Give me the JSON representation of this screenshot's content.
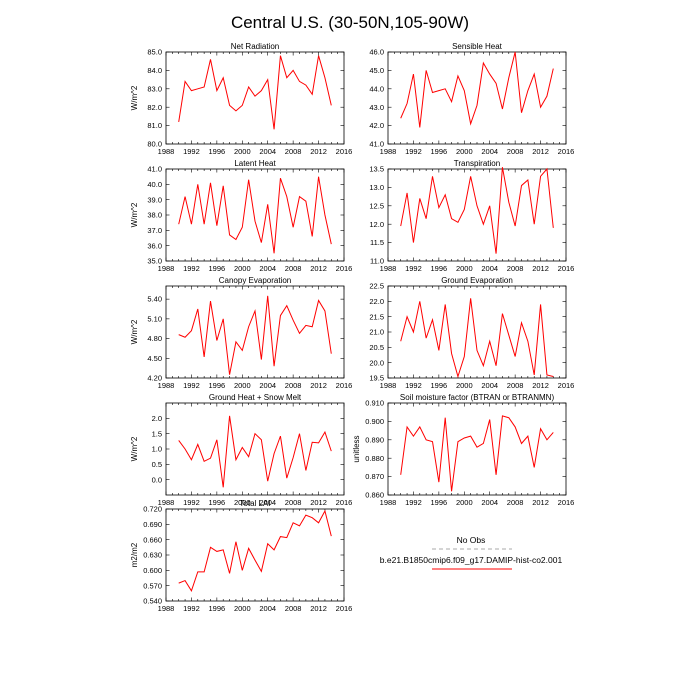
{
  "figure": {
    "title": "Central U.S. (30-50N,105-90W)"
  },
  "legend": {
    "entries": [
      {
        "label": "No Obs",
        "color": "#aaaaaa",
        "style": "dashed"
      },
      {
        "label": "b.e21.B1850cmip6.f09_g17.DAMIP-hist-co2.001",
        "color": "#ff0000",
        "style": "solid"
      }
    ]
  },
  "chart_data": [
    {
      "type": "line",
      "title": "Net Radiation",
      "ylabel": "W/m^2",
      "xlim": [
        1988,
        2016
      ],
      "xticks": [
        "1988",
        "1992",
        "1996",
        "2000",
        "2004",
        "2008",
        "2012",
        "2016"
      ],
      "ylim": [
        80.0,
        85.0
      ],
      "yticks": [
        "80.0",
        "81.0",
        "82.0",
        "83.0",
        "84.0",
        "85.0"
      ],
      "series": [
        {
          "color": "#ff0000",
          "x": [
            1990,
            1991,
            1992,
            1993,
            1994,
            1995,
            1996,
            1997,
            1998,
            1999,
            2000,
            2001,
            2002,
            2003,
            2004,
            2005,
            2006,
            2007,
            2008,
            2009,
            2010,
            2011,
            2012,
            2013,
            2014
          ],
          "values": [
            81.2,
            83.4,
            82.9,
            83.0,
            83.1,
            84.6,
            82.9,
            83.6,
            82.1,
            81.8,
            82.1,
            83.1,
            82.6,
            82.9,
            83.5,
            80.8,
            84.8,
            83.6,
            84.0,
            83.4,
            83.2,
            82.7,
            84.8,
            83.6,
            82.1
          ]
        }
      ]
    },
    {
      "type": "line",
      "title": "Sensible Heat",
      "ylabel": "",
      "xlim": [
        1988,
        2016
      ],
      "xticks": [
        "1988",
        "1992",
        "1996",
        "2000",
        "2004",
        "2008",
        "2012",
        "2016"
      ],
      "ylim": [
        41.0,
        46.0
      ],
      "yticks": [
        "41.0",
        "42.0",
        "43.0",
        "44.0",
        "45.0",
        "46.0"
      ],
      "series": [
        {
          "color": "#ff0000",
          "x": [
            1990,
            1991,
            1992,
            1993,
            1994,
            1995,
            1996,
            1997,
            1998,
            1999,
            2000,
            2001,
            2002,
            2003,
            2004,
            2005,
            2006,
            2007,
            2008,
            2009,
            2010,
            2011,
            2012,
            2013,
            2014
          ],
          "values": [
            42.4,
            43.2,
            44.8,
            41.9,
            45.0,
            43.8,
            43.9,
            44.0,
            43.3,
            44.7,
            43.9,
            42.1,
            43.1,
            45.4,
            44.8,
            44.3,
            42.9,
            44.6,
            46.0,
            42.7,
            43.9,
            44.8,
            43.0,
            43.6,
            45.1
          ]
        }
      ]
    },
    {
      "type": "line",
      "title": "Latent Heat",
      "ylabel": "W/m^2",
      "xlim": [
        1988,
        2016
      ],
      "xticks": [
        "1988",
        "1992",
        "1996",
        "2000",
        "2004",
        "2008",
        "2012",
        "2016"
      ],
      "ylim": [
        35.0,
        41.0
      ],
      "yticks": [
        "35.0",
        "36.0",
        "37.0",
        "38.0",
        "39.0",
        "40.0",
        "41.0"
      ],
      "series": [
        {
          "color": "#ff0000",
          "x": [
            1990,
            1991,
            1992,
            1993,
            1994,
            1995,
            1996,
            1997,
            1998,
            1999,
            2000,
            2001,
            2002,
            2003,
            2004,
            2005,
            2006,
            2007,
            2008,
            2009,
            2010,
            2011,
            2012,
            2013,
            2014
          ],
          "values": [
            37.4,
            39.2,
            37.4,
            40.0,
            37.4,
            40.1,
            37.3,
            39.9,
            36.7,
            36.4,
            37.2,
            40.3,
            37.6,
            36.2,
            38.7,
            35.5,
            40.4,
            39.2,
            37.2,
            39.2,
            38.9,
            36.6,
            40.5,
            38.0,
            36.1
          ]
        }
      ]
    },
    {
      "type": "line",
      "title": "Transpiration",
      "ylabel": "",
      "xlim": [
        1988,
        2016
      ],
      "xticks": [
        "1988",
        "1992",
        "1996",
        "2000",
        "2004",
        "2008",
        "2012",
        "2016"
      ],
      "ylim": [
        11.0,
        13.5
      ],
      "yticks": [
        "11.0",
        "11.5",
        "12.0",
        "12.5",
        "13.0",
        "13.5"
      ],
      "series": [
        {
          "color": "#ff0000",
          "x": [
            1990,
            1991,
            1992,
            1993,
            1994,
            1995,
            1996,
            1997,
            1998,
            1999,
            2000,
            2001,
            2002,
            2003,
            2004,
            2005,
            2006,
            2007,
            2008,
            2009,
            2010,
            2011,
            2012,
            2013,
            2014
          ],
          "values": [
            11.95,
            12.85,
            11.5,
            12.7,
            12.15,
            13.3,
            12.45,
            12.8,
            12.15,
            12.05,
            12.4,
            13.3,
            12.5,
            12.0,
            12.5,
            11.2,
            13.55,
            12.6,
            11.95,
            13.05,
            13.2,
            12.0,
            13.3,
            13.5,
            11.9
          ]
        }
      ]
    },
    {
      "type": "line",
      "title": "Canopy Evaporation",
      "ylabel": "W/m^2",
      "xlim": [
        1988,
        2016
      ],
      "xticks": [
        "1988",
        "1992",
        "1996",
        "2000",
        "2004",
        "2008",
        "2012",
        "2016"
      ],
      "ylim": [
        4.2,
        5.6
      ],
      "yticks": [
        "4.20",
        "4.50",
        "4.80",
        "5.10",
        "5.40"
      ],
      "series": [
        {
          "color": "#ff0000",
          "x": [
            1990,
            1991,
            1992,
            1993,
            1994,
            1995,
            1996,
            1997,
            1998,
            1999,
            2000,
            2001,
            2002,
            2003,
            2004,
            2005,
            2006,
            2007,
            2008,
            2009,
            2010,
            2011,
            2012,
            2013,
            2014
          ],
          "values": [
            4.86,
            4.82,
            4.92,
            5.25,
            4.52,
            5.37,
            4.77,
            5.1,
            4.25,
            4.75,
            4.62,
            4.98,
            5.22,
            4.48,
            5.45,
            4.38,
            5.15,
            5.3,
            5.08,
            4.88,
            5.0,
            4.98,
            5.38,
            5.22,
            4.57
          ]
        }
      ]
    },
    {
      "type": "line",
      "title": "Ground Evaporation",
      "ylabel": "",
      "xlim": [
        1988,
        2016
      ],
      "xticks": [
        "1988",
        "1992",
        "1996",
        "2000",
        "2004",
        "2008",
        "2012",
        "2016"
      ],
      "ylim": [
        19.5,
        22.5
      ],
      "yticks": [
        "19.5",
        "20.0",
        "20.5",
        "21.0",
        "21.5",
        "22.0",
        "22.5"
      ],
      "series": [
        {
          "color": "#ff0000",
          "x": [
            1990,
            1991,
            1992,
            1993,
            1994,
            1995,
            1996,
            1997,
            1998,
            1999,
            2000,
            2001,
            2002,
            2003,
            2004,
            2005,
            2006,
            2007,
            2008,
            2009,
            2010,
            2011,
            2012,
            2013,
            2014
          ],
          "values": [
            20.7,
            21.5,
            21.0,
            22.0,
            20.8,
            21.4,
            20.4,
            21.9,
            20.3,
            19.55,
            20.2,
            22.1,
            20.4,
            19.9,
            20.7,
            19.9,
            21.6,
            20.9,
            20.2,
            21.3,
            20.7,
            19.6,
            21.9,
            19.6,
            19.55
          ]
        }
      ]
    },
    {
      "type": "line",
      "title": "Ground Heat + Snow Melt",
      "ylabel": "W/m^2",
      "xlim": [
        1988,
        2016
      ],
      "xticks": [
        "1988",
        "1992",
        "1996",
        "2000",
        "2004",
        "2008",
        "2012",
        "2016"
      ],
      "ylim": [
        -0.5,
        2.5
      ],
      "yticks": [
        "0.0",
        "0.5",
        "1.0",
        "1.5",
        "2.0"
      ],
      "series": [
        {
          "color": "#ff0000",
          "x": [
            1990,
            1991,
            1992,
            1993,
            1994,
            1995,
            1996,
            1997,
            1998,
            1999,
            2000,
            2001,
            2002,
            2003,
            2004,
            2005,
            2006,
            2007,
            2008,
            2009,
            2010,
            2011,
            2012,
            2013,
            2014
          ],
          "values": [
            1.28,
            1.0,
            0.65,
            1.15,
            0.6,
            0.7,
            1.3,
            -0.25,
            2.08,
            0.65,
            1.05,
            0.75,
            1.5,
            1.3,
            -0.05,
            0.85,
            1.42,
            0.05,
            0.72,
            1.5,
            0.3,
            1.22,
            1.2,
            1.55,
            0.93
          ]
        }
      ]
    },
    {
      "type": "line",
      "title": "Soil moisture factor (BTRAN or BTRANMN)",
      "ylabel": "unitless",
      "xlim": [
        1988,
        2016
      ],
      "xticks": [
        "1988",
        "1992",
        "1996",
        "2000",
        "2004",
        "2008",
        "2012",
        "2016"
      ],
      "ylim": [
        0.86,
        0.91
      ],
      "yticks": [
        "0.860",
        "0.870",
        "0.880",
        "0.890",
        "0.900",
        "0.910"
      ],
      "series": [
        {
          "color": "#ff0000",
          "x": [
            1990,
            1991,
            1992,
            1993,
            1994,
            1995,
            1996,
            1997,
            1998,
            1999,
            2000,
            2001,
            2002,
            2003,
            2004,
            2005,
            2006,
            2007,
            2008,
            2009,
            2010,
            2011,
            2012,
            2013,
            2014
          ],
          "values": [
            0.871,
            0.897,
            0.892,
            0.897,
            0.89,
            0.889,
            0.867,
            0.902,
            0.862,
            0.889,
            0.891,
            0.892,
            0.886,
            0.888,
            0.901,
            0.871,
            0.903,
            0.902,
            0.897,
            0.888,
            0.892,
            0.875,
            0.896,
            0.89,
            0.894
          ]
        }
      ]
    },
    {
      "type": "line",
      "title": "Total LAI",
      "ylabel": "m2/m2",
      "xlim": [
        1988,
        2016
      ],
      "xticks": [
        "1988",
        "1992",
        "1996",
        "2000",
        "2004",
        "2008",
        "2012",
        "2016"
      ],
      "ylim": [
        0.54,
        0.72
      ],
      "yticks": [
        "0.540",
        "0.570",
        "0.600",
        "0.630",
        "0.660",
        "0.690",
        "0.720"
      ],
      "series": [
        {
          "color": "#ff0000",
          "x": [
            1990,
            1991,
            1992,
            1993,
            1994,
            1995,
            1996,
            1997,
            1998,
            1999,
            2000,
            2001,
            2002,
            2003,
            2004,
            2005,
            2006,
            2007,
            2008,
            2009,
            2010,
            2011,
            2012,
            2013,
            2014
          ],
          "values": [
            0.575,
            0.58,
            0.56,
            0.597,
            0.597,
            0.645,
            0.637,
            0.64,
            0.594,
            0.656,
            0.6,
            0.643,
            0.62,
            0.598,
            0.652,
            0.64,
            0.666,
            0.664,
            0.693,
            0.687,
            0.708,
            0.703,
            0.693,
            0.716,
            0.667
          ]
        }
      ]
    }
  ]
}
